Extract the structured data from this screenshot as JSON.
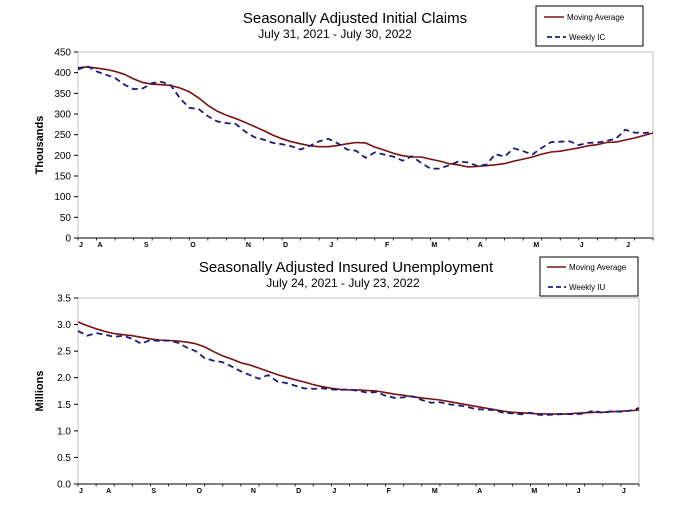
{
  "chart_data": [
    {
      "type": "line",
      "title": "Seasonally Adjusted Initial Claims",
      "subtitle": "July 31, 2021 - July 30, 2022",
      "ylabel": "Thousands",
      "ylim": [
        0,
        450
      ],
      "yticks": [
        0,
        50,
        100,
        150,
        200,
        250,
        300,
        350,
        400,
        450
      ],
      "month_labels": [
        "J",
        "A",
        "S",
        "O",
        "N",
        "D",
        "J",
        "F",
        "M",
        "A",
        "M",
        "J",
        "J"
      ],
      "month_weeks": [
        0,
        2,
        7,
        12,
        18,
        22,
        27,
        33,
        38,
        43,
        49,
        54,
        59
      ],
      "legend_position": "top-right",
      "grid": false,
      "colors": {
        "moving_average": "#7a1010",
        "weekly": "#1a1a7a"
      },
      "series": [
        {
          "name": "Moving Average",
          "values": [
            412,
            414,
            411,
            408,
            403,
            396,
            385,
            376,
            372,
            371,
            369,
            363,
            354,
            339,
            321,
            307,
            297,
            289,
            280,
            270,
            260,
            249,
            240,
            233,
            228,
            223,
            221,
            221,
            224,
            228,
            231,
            230,
            220,
            213,
            205,
            199,
            196,
            196,
            191,
            186,
            180,
            177,
            172,
            173,
            175,
            177,
            180,
            186,
            191,
            196,
            203,
            208,
            210,
            214,
            218,
            223,
            226,
            231,
            232,
            237,
            242,
            248,
            254
          ]
        },
        {
          "name": "Weekly IC",
          "values": [
            408,
            416,
            403,
            395,
            387,
            371,
            360,
            362,
            375,
            378,
            370,
            338,
            315,
            312,
            295,
            282,
            278,
            276,
            258,
            244,
            238,
            230,
            227,
            222,
            214,
            223,
            234,
            240,
            229,
            214,
            211,
            194,
            207,
            202,
            197,
            187,
            198,
            182,
            168,
            168,
            176,
            185,
            183,
            175,
            177,
            203,
            197,
            217,
            210,
            202,
            218,
            232,
            233,
            234,
            225,
            230,
            231,
            235,
            240,
            262,
            255,
            254,
            256
          ]
        }
      ]
    },
    {
      "type": "line",
      "title": "Seasonally Adjusted Insured Unemployment",
      "subtitle": "July 24, 2021 - July 23, 2022",
      "ylabel": "Millions",
      "ylim": [
        0.0,
        3.5
      ],
      "yticks": [
        "0.0",
        "0.5",
        "1.0",
        "1.5",
        "2.0",
        "2.5",
        "3.0",
        "3.5"
      ],
      "month_labels": [
        "J",
        "A",
        "S",
        "O",
        "N",
        "D",
        "J",
        "F",
        "M",
        "A",
        "M",
        "J",
        "J"
      ],
      "month_weeks": [
        0,
        3,
        8,
        13,
        19,
        24,
        28,
        34,
        39,
        44,
        50,
        55,
        60
      ],
      "legend_position": "top-right",
      "grid": false,
      "colors": {
        "moving_average": "#7a1010",
        "weekly": "#1a1a7a"
      },
      "series": [
        {
          "name": "Moving Average",
          "values": [
            3.05,
            2.98,
            2.92,
            2.87,
            2.83,
            2.81,
            2.79,
            2.76,
            2.73,
            2.71,
            2.7,
            2.69,
            2.67,
            2.64,
            2.58,
            2.49,
            2.41,
            2.35,
            2.28,
            2.24,
            2.18,
            2.12,
            2.06,
            2.01,
            1.96,
            1.92,
            1.87,
            1.83,
            1.8,
            1.78,
            1.77,
            1.77,
            1.76,
            1.75,
            1.72,
            1.69,
            1.67,
            1.64,
            1.62,
            1.6,
            1.58,
            1.55,
            1.52,
            1.49,
            1.46,
            1.43,
            1.4,
            1.37,
            1.35,
            1.34,
            1.33,
            1.32,
            1.32,
            1.32,
            1.32,
            1.33,
            1.34,
            1.35,
            1.35,
            1.36,
            1.37,
            1.38,
            1.39
          ]
        },
        {
          "name": "Weekly IU",
          "values": [
            2.88,
            2.79,
            2.84,
            2.81,
            2.77,
            2.79,
            2.73,
            2.64,
            2.71,
            2.69,
            2.7,
            2.66,
            2.57,
            2.5,
            2.37,
            2.32,
            2.29,
            2.21,
            2.12,
            2.05,
            1.98,
            2.05,
            1.93,
            1.9,
            1.85,
            1.8,
            1.79,
            1.8,
            1.78,
            1.77,
            1.78,
            1.75,
            1.72,
            1.73,
            1.66,
            1.62,
            1.63,
            1.65,
            1.58,
            1.53,
            1.54,
            1.5,
            1.48,
            1.45,
            1.41,
            1.4,
            1.39,
            1.34,
            1.33,
            1.31,
            1.34,
            1.3,
            1.3,
            1.31,
            1.32,
            1.31,
            1.33,
            1.38,
            1.34,
            1.37,
            1.36,
            1.38,
            1.43
          ]
        }
      ]
    }
  ]
}
